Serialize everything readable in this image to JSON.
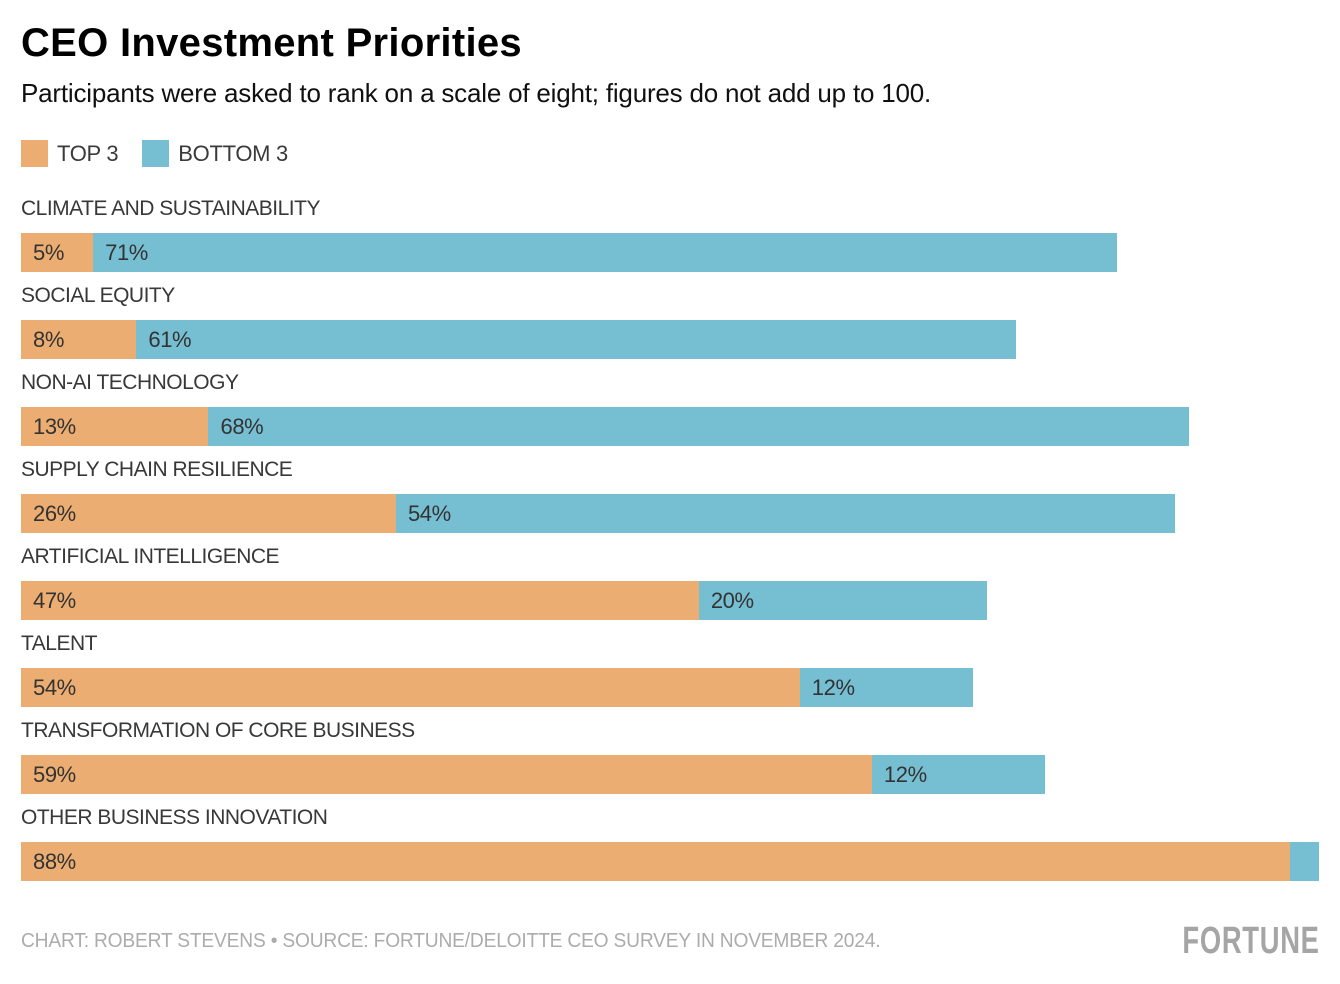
{
  "header": {
    "title": "CEO Investment Priorities",
    "subtitle": "Participants were asked to rank on a scale of eight; figures do not add up to 100."
  },
  "legend": [
    {
      "name": "top3",
      "label": "TOP 3",
      "color": "#EBAD72"
    },
    {
      "name": "bottom3",
      "label": "BOTTOM 3",
      "color": "#76BFD2"
    }
  ],
  "chart_data": {
    "type": "bar",
    "orientation": "horizontal",
    "stacked": true,
    "title": "CEO Investment Priorities",
    "subtitle": "Participants were asked to rank on a scale of eight; figures do not add up to 100.",
    "categories": [
      "CLIMATE AND SUSTAINABILITY",
      "SOCIAL EQUITY",
      "NON-AI TECHNOLOGY",
      "SUPPLY CHAIN RESILIENCE",
      "ARTIFICIAL INTELLIGENCE",
      "TALENT",
      "TRANSFORMATION OF CORE BUSINESS",
      "OTHER BUSINESS INNOVATION"
    ],
    "series": [
      {
        "name": "TOP 3",
        "color": "#EBAD72",
        "values": [
          5,
          8,
          13,
          26,
          47,
          54,
          59,
          88
        ],
        "labels": [
          "5%",
          "8%",
          "13%",
          "26%",
          "47%",
          "54%",
          "59%",
          "88%"
        ]
      },
      {
        "name": "BOTTOM 3",
        "color": "#76BFD2",
        "values": [
          71,
          61,
          68,
          54,
          20,
          12,
          12,
          2
        ],
        "labels": [
          "71%",
          "61%",
          "68%",
          "54%",
          "20%",
          "12%",
          "12%",
          ""
        ]
      }
    ],
    "xlim": [
      0,
      90
    ],
    "grid": false,
    "legend_position": "top-left",
    "value_label_position": "inside-start"
  },
  "footer": {
    "credit": "CHART: ROBERT STEVENS • SOURCE: FORTUNE/DELOITTE CEO SURVEY IN NOVEMBER 2024.",
    "logo": "FORTUNE"
  },
  "colors": {
    "top3": "#EBAD72",
    "bottom3": "#76BFD2",
    "value_text": "#333333",
    "category_text": "#383838",
    "footer_text": "#ACACAC"
  }
}
